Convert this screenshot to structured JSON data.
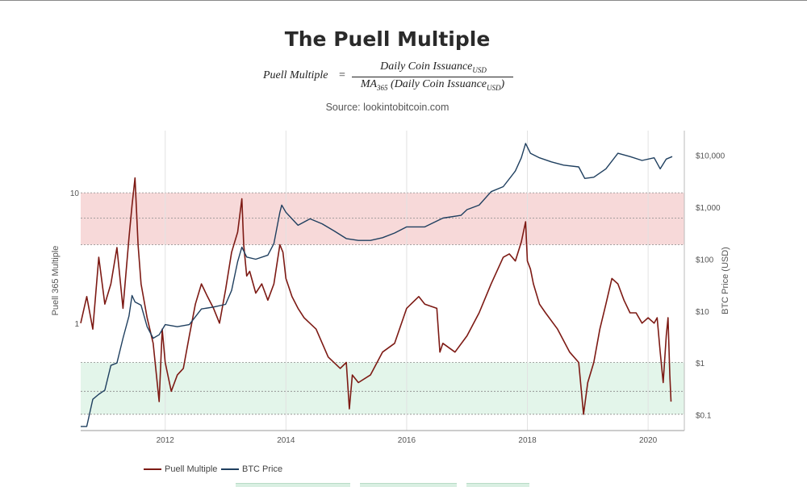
{
  "title": "The Puell Multiple",
  "formula": {
    "lhs": "Puell Multiple",
    "equals": "=",
    "numerator": "Daily Coin Issuance",
    "numerator_sub": "USD",
    "denominator_prefix": "MA",
    "denominator_prefix_sub": "365",
    "denominator": "(Daily Coin Issuance",
    "denominator_sub": "USD",
    "denominator_suffix": ")"
  },
  "source": "Source: lookintobitcoin.com",
  "chart_data": {
    "type": "line",
    "x_ticks": [
      "2012",
      "2014",
      "2016",
      "2018",
      "2020"
    ],
    "x_range": [
      2010.6,
      2020.6
    ],
    "left_axis": {
      "label": "Puell 365 Multiple",
      "scale": "log",
      "ticks": [
        "10",
        "1"
      ],
      "ylim": [
        0.15,
        30
      ]
    },
    "right_axis": {
      "label": "BTC Price (USD)",
      "scale": "log",
      "ticks": [
        "$10,000",
        "$1,000",
        "$100",
        "$10",
        "$1",
        "$0.1"
      ],
      "ylim": [
        0.05,
        30000
      ]
    },
    "bands": [
      {
        "name": "overvalued",
        "color": "#f7d9d9",
        "range": [
          4,
          10
        ],
        "midline": 6.4
      },
      {
        "name": "undervalued",
        "color": "#e3f5ea",
        "range": [
          0.2,
          0.5
        ],
        "midline": 0.3
      }
    ],
    "series": [
      {
        "name": "Puell Multiple",
        "color": "#7d1a14",
        "axis": "left",
        "x": [
          2010.6,
          2010.7,
          2010.8,
          2010.9,
          2011.0,
          2011.1,
          2011.2,
          2011.3,
          2011.4,
          2011.45,
          2011.5,
          2011.55,
          2011.6,
          2011.7,
          2011.8,
          2011.9,
          2011.95,
          2012.0,
          2012.1,
          2012.2,
          2012.3,
          2012.4,
          2012.5,
          2012.6,
          2012.7,
          2012.8,
          2012.9,
          2013.0,
          2013.1,
          2013.2,
          2013.27,
          2013.3,
          2013.35,
          2013.4,
          2013.5,
          2013.6,
          2013.7,
          2013.8,
          2013.9,
          2013.95,
          2014.0,
          2014.1,
          2014.2,
          2014.3,
          2014.5,
          2014.7,
          2014.9,
          2015.0,
          2015.05,
          2015.1,
          2015.2,
          2015.4,
          2015.6,
          2015.8,
          2016.0,
          2016.2,
          2016.3,
          2016.5,
          2016.55,
          2016.6,
          2016.8,
          2017.0,
          2017.2,
          2017.4,
          2017.6,
          2017.7,
          2017.8,
          2017.9,
          2017.97,
          2018.0,
          2018.05,
          2018.1,
          2018.2,
          2018.3,
          2018.5,
          2018.7,
          2018.85,
          2018.93,
          2019.0,
          2019.1,
          2019.2,
          2019.3,
          2019.4,
          2019.5,
          2019.6,
          2019.7,
          2019.8,
          2019.9,
          2020.0,
          2020.1,
          2020.15,
          2020.2,
          2020.25,
          2020.3,
          2020.33,
          2020.36,
          2020.38
        ],
        "values": [
          1.0,
          1.6,
          0.9,
          3.2,
          1.4,
          2.0,
          3.8,
          1.3,
          4.5,
          8.0,
          13.0,
          4.0,
          2.0,
          1.1,
          0.7,
          0.25,
          0.9,
          0.5,
          0.3,
          0.4,
          0.45,
          0.8,
          1.4,
          2.0,
          1.6,
          1.3,
          1.0,
          1.8,
          3.5,
          5.0,
          9.0,
          4.0,
          2.3,
          2.5,
          1.7,
          2.0,
          1.5,
          2.0,
          4.0,
          3.5,
          2.2,
          1.6,
          1.3,
          1.1,
          0.9,
          0.55,
          0.45,
          0.5,
          0.22,
          0.4,
          0.35,
          0.4,
          0.6,
          0.7,
          1.3,
          1.6,
          1.4,
          1.3,
          0.6,
          0.7,
          0.6,
          0.8,
          1.2,
          2.0,
          3.2,
          3.4,
          3.0,
          4.2,
          6.0,
          3.0,
          2.6,
          2.0,
          1.4,
          1.2,
          0.9,
          0.6,
          0.5,
          0.2,
          0.35,
          0.5,
          0.9,
          1.4,
          2.2,
          2.0,
          1.5,
          1.2,
          1.2,
          1.0,
          1.1,
          1.0,
          1.1,
          0.6,
          0.35,
          0.8,
          1.1,
          0.4,
          0.25
        ]
      },
      {
        "name": "BTC Price",
        "color": "#1f3f5f",
        "axis": "right",
        "x": [
          2010.6,
          2010.7,
          2010.8,
          2010.9,
          2011.0,
          2011.1,
          2011.2,
          2011.3,
          2011.4,
          2011.45,
          2011.5,
          2011.6,
          2011.7,
          2011.8,
          2011.9,
          2012.0,
          2012.2,
          2012.4,
          2012.6,
          2012.8,
          2013.0,
          2013.1,
          2013.2,
          2013.27,
          2013.35,
          2013.5,
          2013.7,
          2013.8,
          2013.9,
          2013.93,
          2014.0,
          2014.1,
          2014.2,
          2014.4,
          2014.6,
          2014.8,
          2015.0,
          2015.2,
          2015.4,
          2015.6,
          2015.8,
          2016.0,
          2016.3,
          2016.6,
          2016.9,
          2017.0,
          2017.2,
          2017.4,
          2017.6,
          2017.8,
          2017.9,
          2017.97,
          2018.05,
          2018.2,
          2018.4,
          2018.6,
          2018.85,
          2018.95,
          2019.1,
          2019.3,
          2019.5,
          2019.7,
          2019.9,
          2020.1,
          2020.2,
          2020.3,
          2020.4
        ],
        "values": [
          0.06,
          0.06,
          0.2,
          0.25,
          0.3,
          0.9,
          1.0,
          3.0,
          8.0,
          20.0,
          15.0,
          13.0,
          5.0,
          3.0,
          3.5,
          5.5,
          5.0,
          5.5,
          11.0,
          12.0,
          13.5,
          25.0,
          90.0,
          170.0,
          110.0,
          100.0,
          120.0,
          200.0,
          800.0,
          1100.0,
          800.0,
          600.0,
          450.0,
          600.0,
          480.0,
          350.0,
          250.0,
          230.0,
          230.0,
          260.0,
          320.0,
          420.0,
          420.0,
          620.0,
          700.0,
          900.0,
          1100.0,
          2000.0,
          2500.0,
          5000.0,
          9000.0,
          17000.0,
          11000.0,
          9000.0,
          7500.0,
          6500.0,
          6000.0,
          3600.0,
          3800.0,
          5500.0,
          11000.0,
          9500.0,
          8000.0,
          9000.0,
          5500.0,
          8500.0,
          9500.0
        ]
      }
    ],
    "legend": [
      "Puell Multiple",
      "BTC Price"
    ]
  }
}
